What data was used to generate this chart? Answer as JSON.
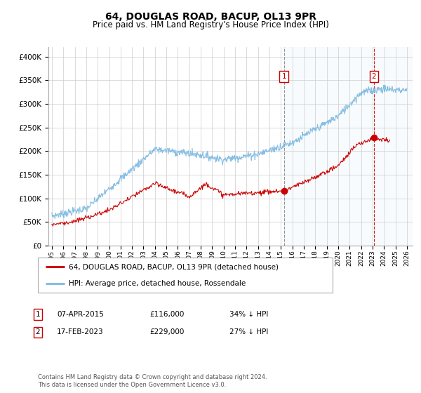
{
  "title": "64, DOUGLAS ROAD, BACUP, OL13 9PR",
  "subtitle": "Price paid vs. HM Land Registry's House Price Index (HPI)",
  "ylim": [
    0,
    420000
  ],
  "yticks": [
    0,
    50000,
    100000,
    150000,
    200000,
    250000,
    300000,
    350000,
    400000
  ],
  "x_start_year": 1995,
  "x_end_year": 2026,
  "hpi_color": "#7bb8e0",
  "price_color": "#cc0000",
  "marker1_year": 2015.27,
  "marker1_price": 116000,
  "marker1_label": "07-APR-2015",
  "marker1_pct": "34% ↓ HPI",
  "marker2_year": 2023.12,
  "marker2_price": 229000,
  "marker2_label": "17-FEB-2023",
  "marker2_pct": "27% ↓ HPI",
  "legend_line1": "64, DOUGLAS ROAD, BACUP, OL13 9PR (detached house)",
  "legend_line2": "HPI: Average price, detached house, Rossendale",
  "footer": "Contains HM Land Registry data © Crown copyright and database right 2024.\nThis data is licensed under the Open Government Licence v3.0."
}
